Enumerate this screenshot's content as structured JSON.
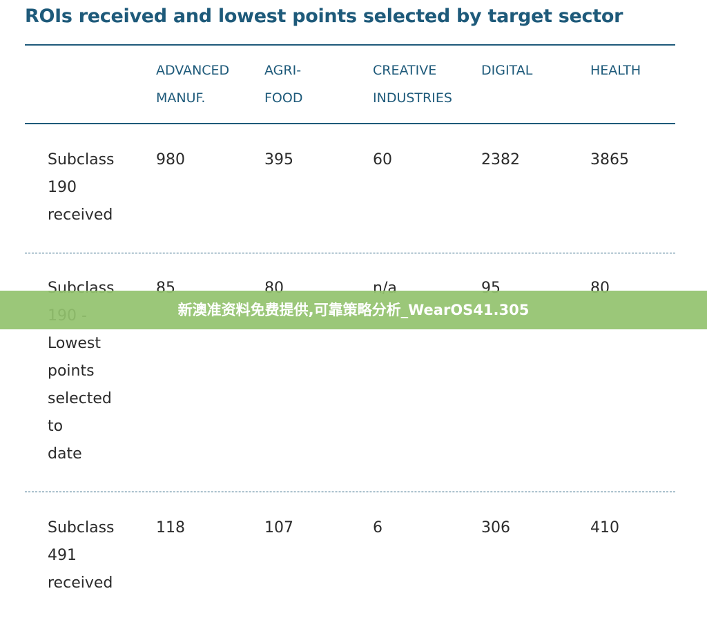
{
  "title": "ROIs received and lowest points selected by target sector",
  "table": {
    "columns": [
      "ADVANCED\nMANUF.",
      "AGRI-\nFOOD",
      "CREATIVE\nINDUSTRIES",
      "DIGITAL",
      "HEALTH"
    ],
    "rows": [
      {
        "label": "Subclass\n190\nreceived",
        "values": [
          "980",
          "395",
          "60",
          "2382",
          "3865"
        ]
      },
      {
        "label": "Subclass\n190 -\nLowest\npoints\nselected\nto\ndate",
        "values": [
          "85",
          "80",
          "n/a",
          "95",
          "80"
        ]
      },
      {
        "label": "Subclass\n491\nreceived",
        "values": [
          "118",
          "107",
          "6",
          "306",
          "410"
        ]
      }
    ]
  },
  "watermark": "新澳准资料免费提供,可靠策略分析_WearOS41.305",
  "colors": {
    "heading": "#1e5a7a",
    "text": "#2b2b2b",
    "watermark_band": "#92c26e"
  }
}
